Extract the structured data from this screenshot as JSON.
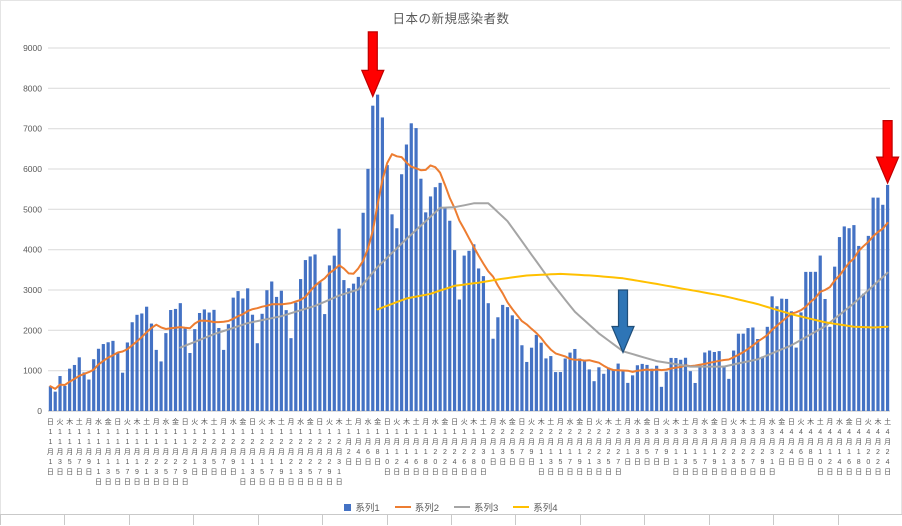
{
  "colors": {
    "background": "#FFFFFF",
    "grid": "#D9D9D9",
    "axis_line": "#BFBFBF",
    "axis_text": "#595959",
    "title_text": "#595959"
  },
  "chart_data": {
    "type": "combo",
    "title": "日本の新規感染者数",
    "ylim": [
      0,
      9000
    ],
    "y_ticks": [
      0,
      1000,
      2000,
      3000,
      4000,
      5000,
      6000,
      7000,
      8000,
      9000
    ],
    "grid": true,
    "legend_position": "bottom",
    "n_points": 175,
    "x_axis": {
      "ticks_every_n_points": 2,
      "tick_labels": [
        "日11月1日",
        "火11月3日",
        "木11月5日",
        "土11月7日",
        "月11月9日",
        "水11月11日",
        "金11月13日",
        "日11月15日",
        "火11月17日",
        "木11月19日",
        "土11月21日",
        "月11月23日",
        "水11月25日",
        "金11月27日",
        "日11月29日",
        "火12月1日",
        "木12月3日",
        "土12月5日",
        "月12月7日",
        "水12月9日",
        "金12月11日",
        "日12月13日",
        "火12月15日",
        "木12月17日",
        "土12月19日",
        "月12月21日",
        "水12月23日",
        "金12月25日",
        "日12月27日",
        "火12月29日",
        "木12月31日",
        "土1月2日",
        "月1月4日",
        "水1月6日",
        "金1月8日",
        "日1月10日",
        "火1月12日",
        "木1月14日",
        "土1月16日",
        "月1月18日",
        "水1月20日",
        "金1月22日",
        "日1月24日",
        "火1月26日",
        "木1月28日",
        "土1月30日",
        "月2月1日",
        "水2月3日",
        "金2月5日",
        "日2月7日",
        "火2月9日",
        "木2月11日",
        "土2月13日",
        "月2月15日",
        "水2月17日",
        "金2月19日",
        "日2月21日",
        "火2月23日",
        "木2月25日",
        "土2月27日",
        "月3月1日",
        "水3月3日",
        "金3月5日",
        "日3月7日",
        "火3月9日",
        "木3月11日",
        "土3月13日",
        "月3月15日",
        "水3月17日",
        "金3月19日",
        "日3月21日",
        "火3月23日",
        "木3月25日",
        "土3月27日",
        "月3月29日",
        "水3月31日",
        "金4月2日",
        "日4月4日",
        "火4月6日",
        "木4月8日",
        "土4月10日",
        "月4月12日",
        "水4月14日",
        "金4月16日",
        "日4月18日",
        "火4月20日",
        "木4月22日",
        "土4月24日"
      ]
    },
    "series": [
      {
        "name": "系列1",
        "type": "bar",
        "color": "#4472C4",
        "values": [
          614,
          480,
          867,
          620,
          1049,
          1141,
          1331,
          957,
          780,
          1284,
          1543,
          1660,
          1704,
          1739,
          1441,
          950,
          1699,
          2201,
          2385,
          2418,
          2586,
          2168,
          1515,
          1229,
          1931,
          2504,
          2531,
          2674,
          2066,
          1438,
          2030,
          2430,
          2518,
          2442,
          2508,
          2058,
          1515,
          2152,
          2811,
          2973,
          2790,
          3041,
          2387,
          1680,
          2410,
          2994,
          3211,
          2829,
          2982,
          2501,
          1806,
          2688,
          3271,
          3742,
          3832,
          3881,
          3205,
          2403,
          3610,
          3852,
          4520,
          3246,
          3044,
          3158,
          3325,
          4915,
          6004,
          7570,
          7844,
          7278,
          6097,
          4876,
          4531,
          5870,
          6607,
          7133,
          7014,
          5759,
          4925,
          5320,
          5549,
          5656,
          5045,
          4717,
          3989,
          2764,
          3853,
          3971,
          4133,
          3534,
          3344,
          2673,
          1792,
          2324,
          2631,
          2576,
          2372,
          2279,
          1630,
          1216,
          1570,
          1887,
          1693,
          1304,
          1362,
          965,
          966,
          1301,
          1448,
          1538,
          1301,
          1234,
          1032,
          739,
          1084,
          923,
          1076,
          1029,
          1176,
          999,
          697,
          884,
          1134,
          1168,
          1143,
          1049,
          1122,
          599,
          973,
          1316,
          1314,
          1271,
          1320,
          988,
          695,
          1131,
          1451,
          1499,
          1463,
          1485,
          1121,
          797,
          1499,
          1917,
          1918,
          2055,
          2071,
          1785,
          1348,
          2087,
          2843,
          2597,
          2785,
          2779,
          2472,
          1572,
          2445,
          3449,
          3450,
          3451,
          3854,
          2777,
          2088,
          3579,
          4312,
          4576,
          4532,
          4609,
          4093,
          2908,
          4342,
          5291,
          5290,
          5113,
          5605
        ]
      },
      {
        "name": "系列2",
        "type": "line",
        "color": "#ED7D31",
        "values": [
          614,
          547,
          654,
          645,
          726,
          795,
          872,
          921,
          964,
          1023,
          1155,
          1242,
          1323,
          1381,
          1450,
          1474,
          1534,
          1628,
          1731,
          1833,
          1954,
          2058,
          2139,
          2072,
          2033,
          2050,
          2066,
          2079,
          2064,
          2053,
          2168,
          2239,
          2241,
          2228,
          2205,
          2203,
          2214,
          2232,
          2286,
          2351,
          2401,
          2477,
          2524,
          2548,
          2585,
          2611,
          2645,
          2650,
          2642,
          2658,
          2676,
          2716,
          2755,
          2831,
          2975,
          3103,
          3204,
          3289,
          3421,
          3504,
          3615,
          3531,
          3411,
          3405,
          3536,
          3723,
          4030,
          4466,
          5123,
          5728,
          6148,
          6369,
          6314,
          6295,
          6158,
          6056,
          6018,
          5970,
          5977,
          6090,
          6044,
          5908,
          5610,
          5282,
          5029,
          4720,
          4510,
          4285,
          4067,
          3852,
          3655,
          3467,
          3329,
          3110,
          2919,
          2696,
          2530,
          2378,
          2229,
          2147,
          2039,
          1933,
          1807,
          1654,
          1523,
          1428,
          1392,
          1354,
          1291,
          1269,
          1269,
          1250,
          1260,
          1228,
          1197,
          1122,
          1056,
          1017,
          1008,
          1004,
          998,
          969,
          999,
          1012,
          1029,
          1011,
          1028,
          1014,
          1027,
          1053,
          1074,
          1092,
          1131,
          1112,
          1125,
          1148,
          1167,
          1194,
          1221,
          1245,
          1264,
          1278,
          1331,
          1397,
          1457,
          1542,
          1625,
          1720,
          1799,
          1883,
          2015,
          2112,
          2217,
          2318,
          2416,
          2448,
          2499,
          2586,
          2707,
          2803,
          2956,
          3000,
          3073,
          3235,
          3359,
          3520,
          3674,
          3782,
          3970,
          4087,
          4196,
          4336,
          4438,
          4521,
          4663
        ]
      },
      {
        "name": "系列3",
        "type": "line",
        "color": "#A5A5A5",
        "values": [
          null,
          null,
          null,
          null,
          null,
          null,
          null,
          null,
          null,
          null,
          null,
          null,
          null,
          null,
          null,
          null,
          null,
          null,
          null,
          null,
          null,
          null,
          null,
          null,
          null,
          null,
          null,
          1571,
          1619,
          1667,
          1714,
          1762,
          1810,
          1857,
          1905,
          1944,
          1983,
          2022,
          2061,
          2101,
          2140,
          2179,
          2204,
          2228,
          2253,
          2277,
          2302,
          2326,
          2351,
          2388,
          2424,
          2461,
          2497,
          2534,
          2570,
          2607,
          2658,
          2708,
          2759,
          2809,
          2860,
          2898,
          2936,
          2974,
          3012,
          3152,
          3291,
          3431,
          3570,
          3686,
          3802,
          3919,
          4035,
          4151,
          4267,
          4377,
          4487,
          4597,
          4707,
          4817,
          4927,
          5037,
          5042,
          5047,
          5052,
          5077,
          5101,
          5126,
          5150,
          5151,
          5152,
          5153,
          5042,
          4930,
          4819,
          4707,
          4541,
          4375,
          4209,
          4043,
          3876,
          3710,
          3543,
          3377,
          3210,
          3060,
          2910,
          2760,
          2610,
          2460,
          2353,
          2246,
          2139,
          2032,
          1925,
          1836,
          1747,
          1658,
          1569,
          1480,
          1445,
          1411,
          1376,
          1342,
          1307,
          1273,
          1238,
          1218,
          1199,
          1179,
          1160,
          1140,
          1121,
          1101,
          1101,
          1101,
          1101,
          1102,
          1102,
          1102,
          1102,
          1128,
          1153,
          1179,
          1204,
          1230,
          1255,
          1281,
          1331,
          1380,
          1430,
          1479,
          1529,
          1578,
          1628,
          1695,
          1763,
          1830,
          1898,
          1965,
          2033,
          2100,
          2195,
          2290,
          2385,
          2480,
          2575,
          2670,
          2779,
          2887,
          2996,
          3104,
          3213,
          3321,
          3430
        ]
      },
      {
        "name": "系列4",
        "type": "line",
        "color": "#FFC000",
        "values": [
          null,
          null,
          null,
          null,
          null,
          null,
          null,
          null,
          null,
          null,
          null,
          null,
          null,
          null,
          null,
          null,
          null,
          null,
          null,
          null,
          null,
          null,
          null,
          null,
          null,
          null,
          null,
          null,
          null,
          null,
          null,
          null,
          null,
          null,
          null,
          null,
          null,
          null,
          null,
          null,
          null,
          null,
          null,
          null,
          null,
          null,
          null,
          null,
          null,
          null,
          null,
          null,
          null,
          null,
          null,
          null,
          null,
          null,
          null,
          null,
          null,
          null,
          null,
          null,
          null,
          null,
          null,
          null,
          2520,
          2565,
          2610,
          2655,
          2700,
          2745,
          2790,
          2813,
          2836,
          2859,
          2882,
          2905,
          2945,
          2985,
          3025,
          3065,
          3105,
          3120,
          3135,
          3150,
          3165,
          3180,
          3200,
          3220,
          3240,
          3260,
          3280,
          3296,
          3312,
          3328,
          3344,
          3360,
          3366,
          3371,
          3377,
          3383,
          3389,
          3394,
          3400,
          3394,
          3387,
          3381,
          3374,
          3368,
          3361,
          3355,
          3344,
          3333,
          3323,
          3312,
          3301,
          3290,
          3270,
          3250,
          3230,
          3210,
          3190,
          3170,
          3150,
          3129,
          3107,
          3086,
          3064,
          3043,
          3021,
          3000,
          2979,
          2957,
          2936,
          2914,
          2893,
          2871,
          2850,
          2821,
          2793,
          2764,
          2736,
          2707,
          2679,
          2650,
          2614,
          2579,
          2543,
          2507,
          2471,
          2436,
          2400,
          2371,
          2343,
          2314,
          2286,
          2257,
          2229,
          2200,
          2182,
          2163,
          2145,
          2127,
          2108,
          2090,
          2085,
          2080,
          2075,
          2070,
          2077,
          2083,
          2090
        ]
      }
    ]
  },
  "annotations": [
    {
      "name": "red-arrow-january-peak",
      "shape": "block-arrow-down",
      "fill": "#FF0000",
      "border": "#C00000",
      "day": 68,
      "tip_value": 7800,
      "top_value": 9400
    },
    {
      "name": "blue-arrow-late-february-low",
      "shape": "block-arrow-down",
      "fill": "#2E75B6",
      "border": "#1F4E79",
      "day": 120,
      "tip_value": 1450,
      "top_value": 3000
    },
    {
      "name": "red-arrow-late-april-rise",
      "shape": "block-arrow-down",
      "fill": "#FF0000",
      "border": "#C00000",
      "day": 175,
      "tip_value": 5650,
      "top_value": 7200
    }
  ]
}
